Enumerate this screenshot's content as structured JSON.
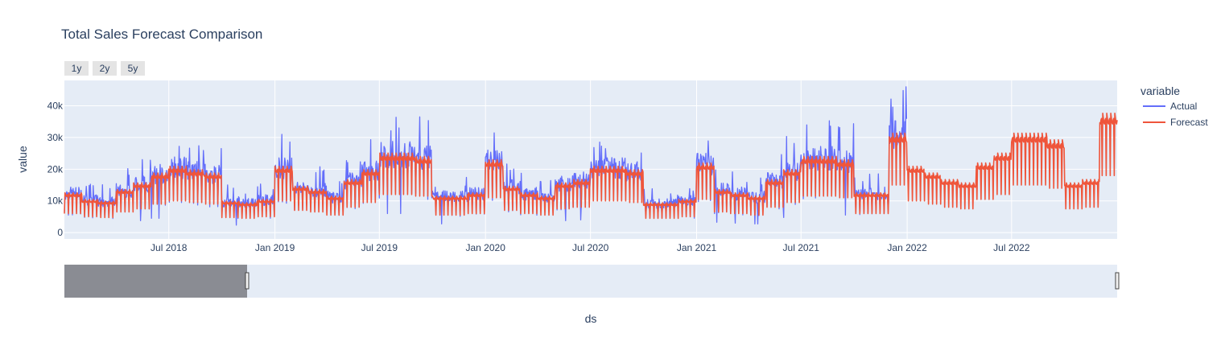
{
  "chart_data": {
    "type": "line",
    "title": "Total Sales Forecast Comparison",
    "xlabel": "ds",
    "ylabel": "value",
    "x_range": [
      "2018-01-01",
      "2022-12-31"
    ],
    "ylim": [
      -2000,
      48000
    ],
    "y_ticks": [
      0,
      10000,
      20000,
      30000,
      40000
    ],
    "y_tick_labels": [
      "0",
      "10k",
      "20k",
      "30k",
      "40k"
    ],
    "x_tick_dates": [
      "2018-07-01",
      "2019-01-01",
      "2019-07-01",
      "2020-01-01",
      "2020-07-01",
      "2021-01-01",
      "2021-07-01",
      "2022-01-01",
      "2022-07-01"
    ],
    "x_tick_labels": [
      "Jul 2018",
      "Jan 2019",
      "Jul 2019",
      "Jan 2020",
      "Jul 2020",
      "Jan 2021",
      "Jul 2021",
      "Jan 2022",
      "Jul 2022"
    ],
    "legend_title": "variable",
    "legend_position": "right",
    "grid": true,
    "range_selector_buttons": [
      "1y",
      "2y",
      "5y"
    ],
    "range_slider": true,
    "series": [
      {
        "name": "Actual",
        "color": "#636efa",
        "x_start": "2018-01-01",
        "x_end": "2021-12-31",
        "baseline_by_month": {
          "2018-01": 12000,
          "2018-02": 10000,
          "2018-03": 9500,
          "2018-04": 13000,
          "2018-05": 15000,
          "2018-06": 18000,
          "2018-07": 20000,
          "2018-08": 19000,
          "2018-09": 18000,
          "2018-10": 9500,
          "2018-11": 9000,
          "2018-12": 10000,
          "2019-01": 20000,
          "2019-02": 14000,
          "2019-03": 13000,
          "2019-04": 11000,
          "2019-05": 16000,
          "2019-06": 19000,
          "2019-07": 24000,
          "2019-08": 24000,
          "2019-09": 23000,
          "2019-10": 11000,
          "2019-11": 11000,
          "2019-12": 12000,
          "2020-01": 22000,
          "2020-02": 14000,
          "2020-03": 12000,
          "2020-04": 11000,
          "2020-05": 15000,
          "2020-06": 16000,
          "2020-07": 20000,
          "2020-08": 20000,
          "2020-09": 19000,
          "2020-10": 9000,
          "2020-11": 9000,
          "2020-12": 10000,
          "2021-01": 21000,
          "2021-02": 13000,
          "2021-03": 12000,
          "2021-04": 11000,
          "2021-05": 16000,
          "2021-06": 19000,
          "2021-07": 23000,
          "2021-08": 23000,
          "2021-09": 22000,
          "2021-10": 12000,
          "2021-11": 12000,
          "2021-12": 30000
        }
      },
      {
        "name": "Forecast",
        "color": "#ef553b",
        "x_start": "2018-01-01",
        "x_end": "2022-12-31",
        "baseline_by_month": {
          "2018-01": 12000,
          "2018-02": 10000,
          "2018-03": 9500,
          "2018-04": 13000,
          "2018-05": 15000,
          "2018-06": 18000,
          "2018-07": 20000,
          "2018-08": 19000,
          "2018-09": 18000,
          "2018-10": 9500,
          "2018-11": 9000,
          "2018-12": 10000,
          "2019-01": 20000,
          "2019-02": 14000,
          "2019-03": 13000,
          "2019-04": 11000,
          "2019-05": 16000,
          "2019-06": 19000,
          "2019-07": 24000,
          "2019-08": 24000,
          "2019-09": 23000,
          "2019-10": 11000,
          "2019-11": 11000,
          "2019-12": 12000,
          "2020-01": 22000,
          "2020-02": 14000,
          "2020-03": 12000,
          "2020-04": 11000,
          "2020-05": 15000,
          "2020-06": 16000,
          "2020-07": 20000,
          "2020-08": 20000,
          "2020-09": 19000,
          "2020-10": 9000,
          "2020-11": 9000,
          "2020-12": 10000,
          "2021-01": 21000,
          "2021-02": 13000,
          "2021-03": 12000,
          "2021-04": 11000,
          "2021-05": 16000,
          "2021-06": 19000,
          "2021-07": 23000,
          "2021-08": 23000,
          "2021-09": 22000,
          "2021-10": 12000,
          "2021-11": 12000,
          "2021-12": 30000,
          "2022-01": 20000,
          "2022-02": 18000,
          "2022-03": 16000,
          "2022-04": 15000,
          "2022-05": 21000,
          "2022-06": 24000,
          "2022-07": 30000,
          "2022-08": 30000,
          "2022-09": 28000,
          "2022-10": 15000,
          "2022-11": 16000,
          "2022-12": 36000
        }
      }
    ]
  }
}
